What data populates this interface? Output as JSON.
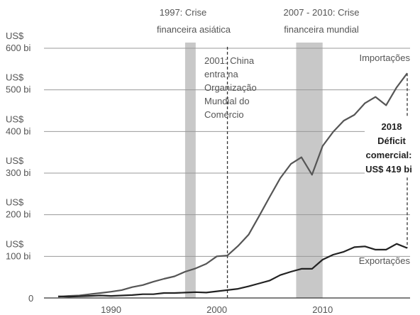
{
  "chart_data": {
    "type": "line",
    "x_unit": "year",
    "xlim": [
      1985,
      2018
    ],
    "ylim": [
      0,
      600
    ],
    "x_ticks": [
      "1990",
      "2000",
      "2010"
    ],
    "x_tick_values": [
      1990,
      2000,
      2010
    ],
    "y_ticks": [
      {
        "value": 600,
        "line1": "US$",
        "line2": "600 bi"
      },
      {
        "value": 500,
        "line1": "US$",
        "line2": "500 bi"
      },
      {
        "value": 400,
        "line1": "US$",
        "line2": "400 bi"
      },
      {
        "value": 300,
        "line1": "US$",
        "line2": "300 bi"
      },
      {
        "value": 200,
        "line1": "US$",
        "line2": "200 bi"
      },
      {
        "value": 100,
        "line1": "US$",
        "line2": "100 bi"
      },
      {
        "value": 0,
        "line1": "0",
        "line2": ""
      }
    ],
    "series": [
      {
        "name": "Importações",
        "color": "#555555",
        "points": [
          [
            1985,
            3
          ],
          [
            1986,
            5
          ],
          [
            1987,
            6
          ],
          [
            1988,
            9
          ],
          [
            1989,
            12
          ],
          [
            1990,
            15
          ],
          [
            1991,
            19
          ],
          [
            1992,
            26
          ],
          [
            1993,
            31
          ],
          [
            1994,
            39
          ],
          [
            1995,
            46
          ],
          [
            1996,
            52
          ],
          [
            1997,
            63
          ],
          [
            1998,
            71
          ],
          [
            1999,
            82
          ],
          [
            2000,
            100
          ],
          [
            2001,
            102
          ],
          [
            2002,
            125
          ],
          [
            2003,
            152
          ],
          [
            2004,
            197
          ],
          [
            2005,
            243
          ],
          [
            2006,
            288
          ],
          [
            2007,
            322
          ],
          [
            2008,
            338
          ],
          [
            2009,
            296
          ],
          [
            2010,
            365
          ],
          [
            2011,
            399
          ],
          [
            2012,
            426
          ],
          [
            2013,
            440
          ],
          [
            2014,
            468
          ],
          [
            2015,
            483
          ],
          [
            2016,
            463
          ],
          [
            2017,
            506
          ],
          [
            2018,
            540
          ]
        ]
      },
      {
        "name": "Exportações",
        "color": "#222222",
        "points": [
          [
            1985,
            4
          ],
          [
            1986,
            3
          ],
          [
            1987,
            4
          ],
          [
            1988,
            5
          ],
          [
            1989,
            6
          ],
          [
            1990,
            5
          ],
          [
            1991,
            6
          ],
          [
            1992,
            7
          ],
          [
            1993,
            9
          ],
          [
            1994,
            9
          ],
          [
            1995,
            12
          ],
          [
            1996,
            12
          ],
          [
            1997,
            13
          ],
          [
            1998,
            14
          ],
          [
            1999,
            13
          ],
          [
            2000,
            16
          ],
          [
            2001,
            19
          ],
          [
            2002,
            22
          ],
          [
            2003,
            28
          ],
          [
            2004,
            35
          ],
          [
            2005,
            42
          ],
          [
            2006,
            55
          ],
          [
            2007,
            63
          ],
          [
            2008,
            70
          ],
          [
            2009,
            70
          ],
          [
            2010,
            92
          ],
          [
            2011,
            104
          ],
          [
            2012,
            111
          ],
          [
            2013,
            122
          ],
          [
            2014,
            124
          ],
          [
            2015,
            116
          ],
          [
            2016,
            116
          ],
          [
            2017,
            130
          ],
          [
            2018,
            120
          ]
        ]
      }
    ],
    "shaded_periods": [
      {
        "start": 1997,
        "end": 1998,
        "label1": "1997: Crise",
        "label2": "financeira asiática"
      },
      {
        "start": 2007.5,
        "end": 2010,
        "label1": "2007 - 2010: Crise",
        "label2": "financeira mundial"
      }
    ],
    "event_line": {
      "x": 2001,
      "lines": [
        "2001: China",
        "entra na",
        "Organização",
        "Mundial do",
        "Comércio"
      ]
    },
    "deficit": {
      "x": 2018,
      "lines": [
        "2018",
        "Déficit",
        "comercial:",
        "US$ 419 bi"
      ]
    },
    "colors": {
      "shade": "#c8c8c8",
      "grid": "#999999",
      "text": "#555555",
      "text_dark": "#222222"
    }
  }
}
